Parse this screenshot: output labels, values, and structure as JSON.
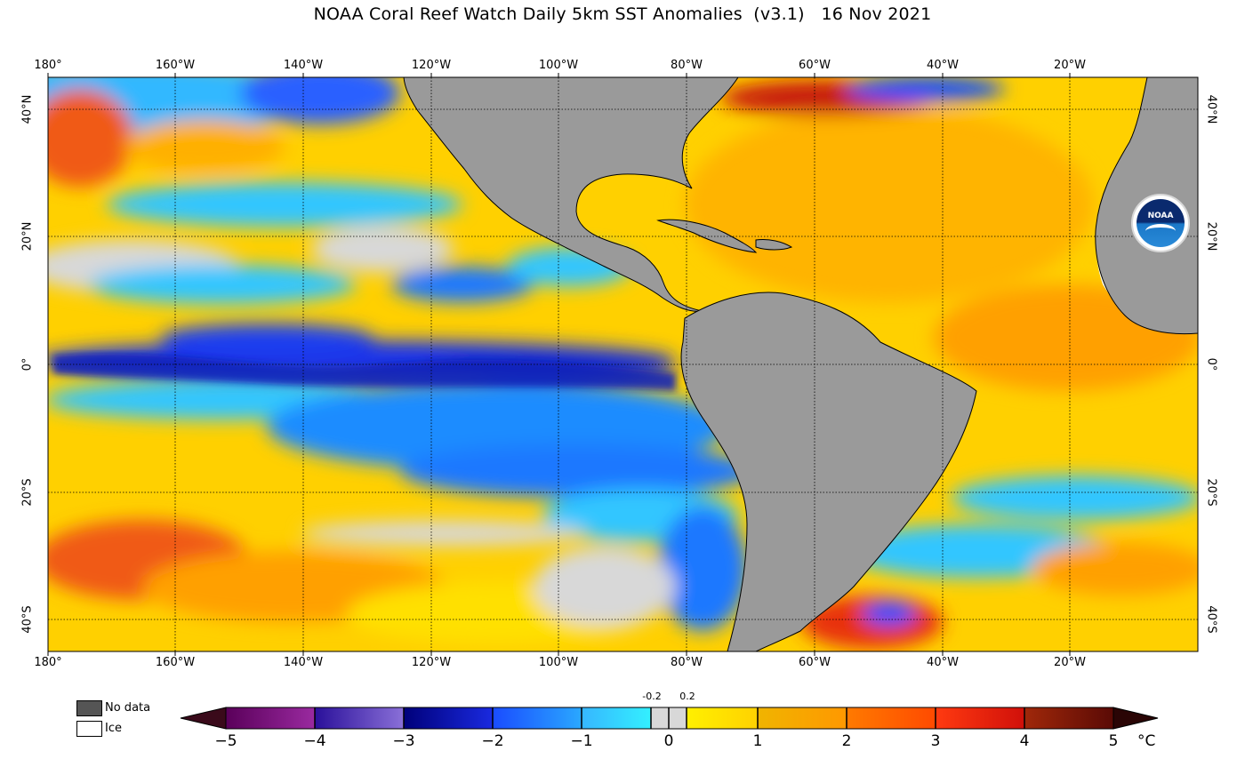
{
  "title": "NOAA Coral Reef Watch Daily 5km SST Anomalies  (v3.1)   16 Nov 2021",
  "longitude_ticks": [
    "180°",
    "160°W",
    "140°W",
    "120°W",
    "100°W",
    "80°W",
    "60°W",
    "40°W",
    "20°W"
  ],
  "latitude_ticks": [
    "40°N",
    "20°N",
    "0°",
    "20°S",
    "40°S"
  ],
  "logo_text": "NOAA",
  "legend": {
    "no_data_label": "No data",
    "ice_label": "Ice",
    "no_data_color": "#555555",
    "ice_color": "#ffffff"
  },
  "colorbar": {
    "ticks": [
      "−5",
      "−4",
      "−3",
      "−2",
      "−1",
      "0",
      "1",
      "2",
      "3",
      "4",
      "5"
    ],
    "small_ticks": [
      "-0.2",
      "0.2"
    ],
    "unit": "°C"
  },
  "colors": {
    "land": "#9a9a9a",
    "neutral": "#d8d8d8",
    "warm_yellow": "#ffd400",
    "warm_orange": "#ff9c00",
    "cool_cyan": "#33c6ff",
    "cool_blue": "#1450ff",
    "deep_blue": "#0a1aa8"
  }
}
